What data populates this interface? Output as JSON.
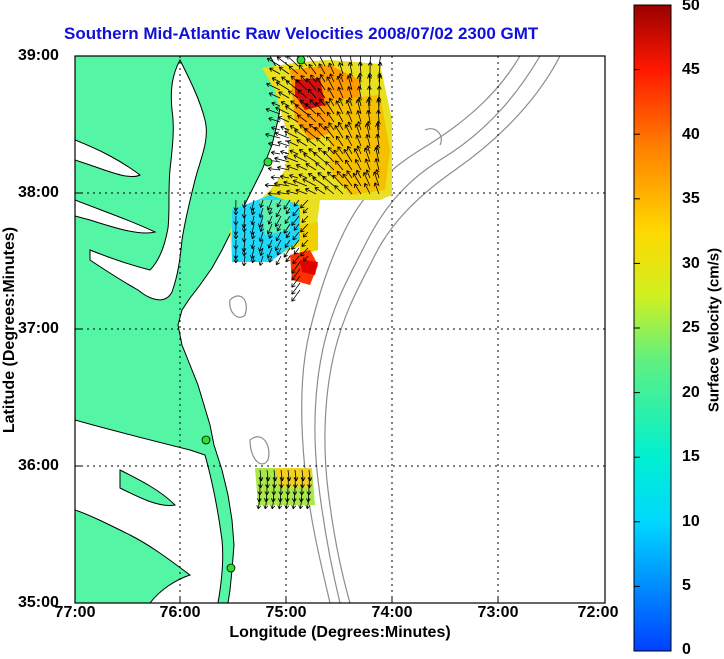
{
  "title": "Southern Mid-Atlantic Raw Velocities 2008/07/02 2300 GMT",
  "x_axis": {
    "label": "Longitude (Degrees:Minutes)",
    "ticks": [
      "77:00",
      "76:00",
      "75:00",
      "74:00",
      "73:00",
      "72:00"
    ]
  },
  "y_axis": {
    "label": "Latitude (Degrees:Minutes)",
    "ticks": [
      "39:00",
      "38:00",
      "37:00",
      "36:00",
      "35:00"
    ]
  },
  "colorbar": {
    "label": "Surface Velocity (cm/s)",
    "ticks": [
      "50",
      "45",
      "40",
      "35",
      "30",
      "25",
      "20",
      "15",
      "10",
      "5",
      "0"
    ],
    "range": [
      0,
      50
    ]
  },
  "colors": {
    "land": "#55f5a6",
    "title": "#1010d8",
    "bathymetry": "#8c8c8c"
  },
  "chart_data": {
    "type": "heatmap",
    "title": "Southern Mid-Atlantic Raw Velocities 2008/07/02 2300 GMT",
    "xlabel": "Longitude (Degrees:Minutes)",
    "ylabel": "Latitude (Degrees:Minutes)",
    "xlim": [
      -77,
      -72
    ],
    "ylim": [
      35,
      39
    ],
    "colorbar_range": [
      0,
      50
    ],
    "grid": true
  }
}
